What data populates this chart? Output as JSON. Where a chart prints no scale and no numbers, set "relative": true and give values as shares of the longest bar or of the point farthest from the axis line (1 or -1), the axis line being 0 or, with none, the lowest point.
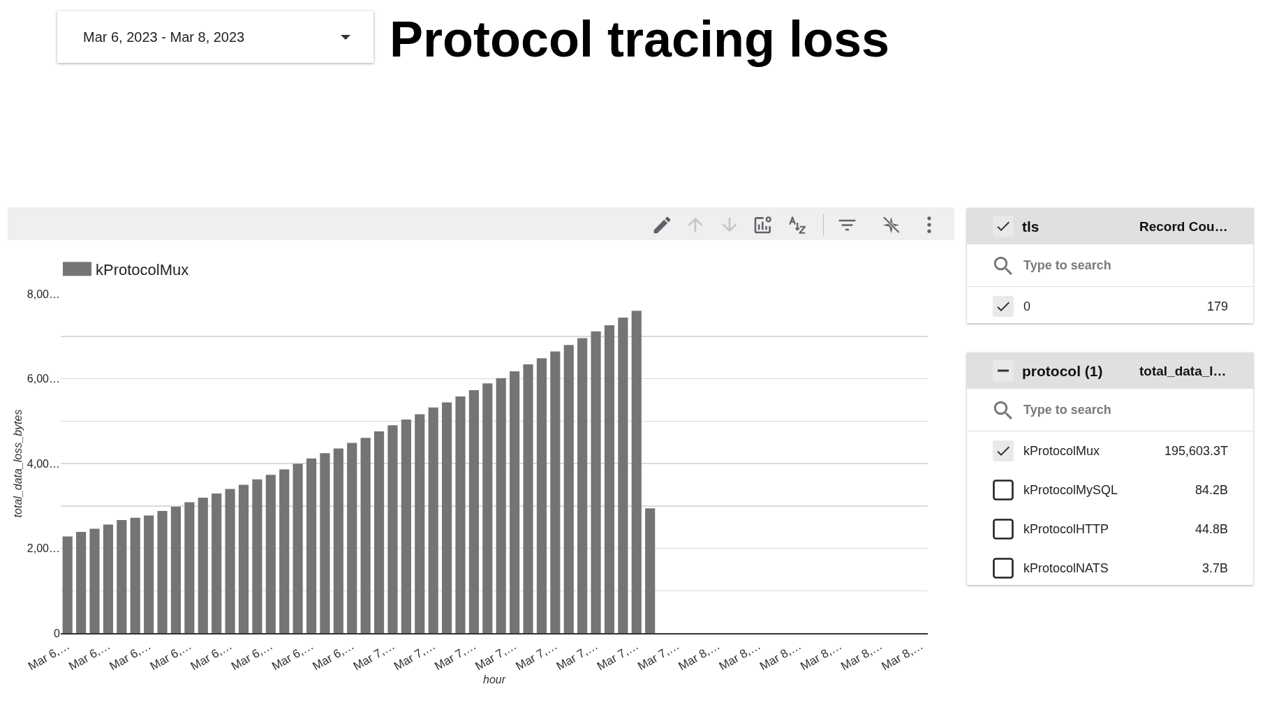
{
  "chart_data": [
    {
      "type": "other",
      "annotations": [
        "Mar 6, 2023 - Mar 8, 2023"
      ]
    },
    {
      "type": "bar",
      "title": "Protocol tracing loss",
      "xlabel": "hour",
      "ylabel": "total_data_loss_bytes",
      "relative": true,
      "categories": [
        "Mar 6,…",
        null,
        null,
        "Mar 6,…",
        null,
        null,
        "Mar 6,…",
        null,
        null,
        "Mar 6,…",
        null,
        null,
        "Mar 6,…",
        null,
        null,
        "Mar 6,…",
        null,
        null,
        "Mar 6,…",
        null,
        null,
        "Mar 6,…",
        null,
        null,
        "Mar 7,…",
        null,
        null,
        "Mar 7,…",
        null,
        null,
        "Mar 7,…",
        null,
        null,
        "Mar 7,…",
        null,
        null,
        "Mar 7,…",
        null,
        null,
        "Mar 7,…",
        null,
        null,
        "Mar 7,…",
        null,
        null,
        "Mar 7,…",
        null,
        null,
        "Mar 8,…",
        null,
        null,
        "Mar 8,…",
        null,
        null,
        "Mar 8,…",
        null,
        null,
        "Mar 8,…",
        null,
        null,
        "Mar 8,…",
        null,
        null,
        "Mar 8,…"
      ],
      "y_categories": [
        "8,00…",
        null,
        "6,00…",
        null,
        "4,00…",
        null,
        "2,00…",
        null,
        "0"
      ],
      "series": [
        {
          "name": "kProtocolMux",
          "color": "#747474",
          "values": [
            0.3,
            0.314,
            0.324,
            0.337,
            0.351,
            0.358,
            0.365,
            0.379,
            0.392,
            0.406,
            0.42,
            0.433,
            0.447,
            0.46,
            0.477,
            0.491,
            0.508,
            0.525,
            0.542,
            0.558,
            0.573,
            0.59,
            0.606,
            0.626,
            0.645,
            0.663,
            0.679,
            0.7,
            0.716,
            0.734,
            0.754,
            0.775,
            0.791,
            0.812,
            0.834,
            0.853,
            0.874,
            0.894,
            0.915,
            0.936,
            0.955,
            0.979,
            1,
            0.387,
            null,
            null,
            null,
            null,
            null,
            null,
            null,
            null,
            null,
            null,
            null,
            null,
            null,
            null,
            null,
            null,
            null,
            null,
            null,
            null
          ]
        }
      ],
      "grid": "y",
      "legend": "top left"
    },
    {
      "type": "other",
      "title": "tls",
      "annotations": [
        "Record Cou…",
        "Type to search",
        "0",
        "179"
      ]
    },
    {
      "type": "other",
      "title": "protocol (1)",
      "annotations": [
        "total_data_l…",
        "Type to search",
        "kProtocolMux",
        "195,603.3T",
        "kProtocolMySQL",
        "84.2B",
        "kProtocolHTTP",
        "44.8B",
        "kProtocolNATS",
        "3.7B"
      ]
    }
  ]
}
